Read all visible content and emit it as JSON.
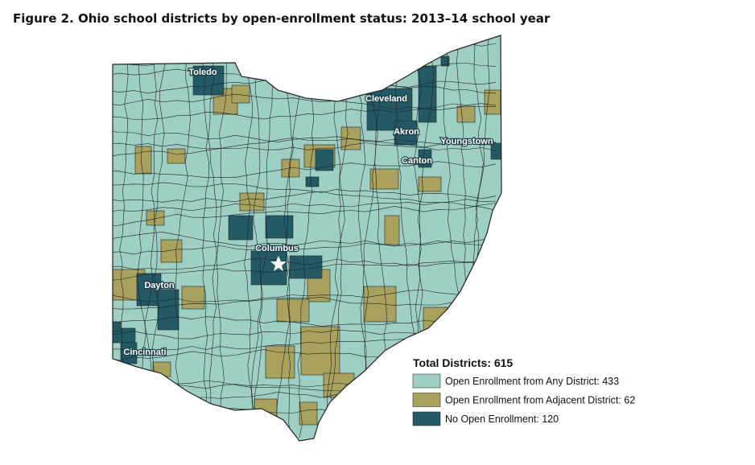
{
  "title": "Figure 2. Ohio school districts by open-enrollment status: 2013–14 school year",
  "cities": [
    "Toledo",
    "Cleveland",
    "Akron",
    "Youngstown",
    "Canton",
    "Columbus",
    "Dayton",
    "Cincinnati"
  ],
  "legend": {
    "title": "Total Districts: 615",
    "items": [
      {
        "label": "Open Enrollment from Any District: 433",
        "color": "#9ecfc5"
      },
      {
        "label": "Open Enrollment from Adjacent District: 62",
        "color": "#a9a25e"
      },
      {
        "label": "No Open Enrollment: 120",
        "color": "#245a66"
      }
    ]
  }
}
